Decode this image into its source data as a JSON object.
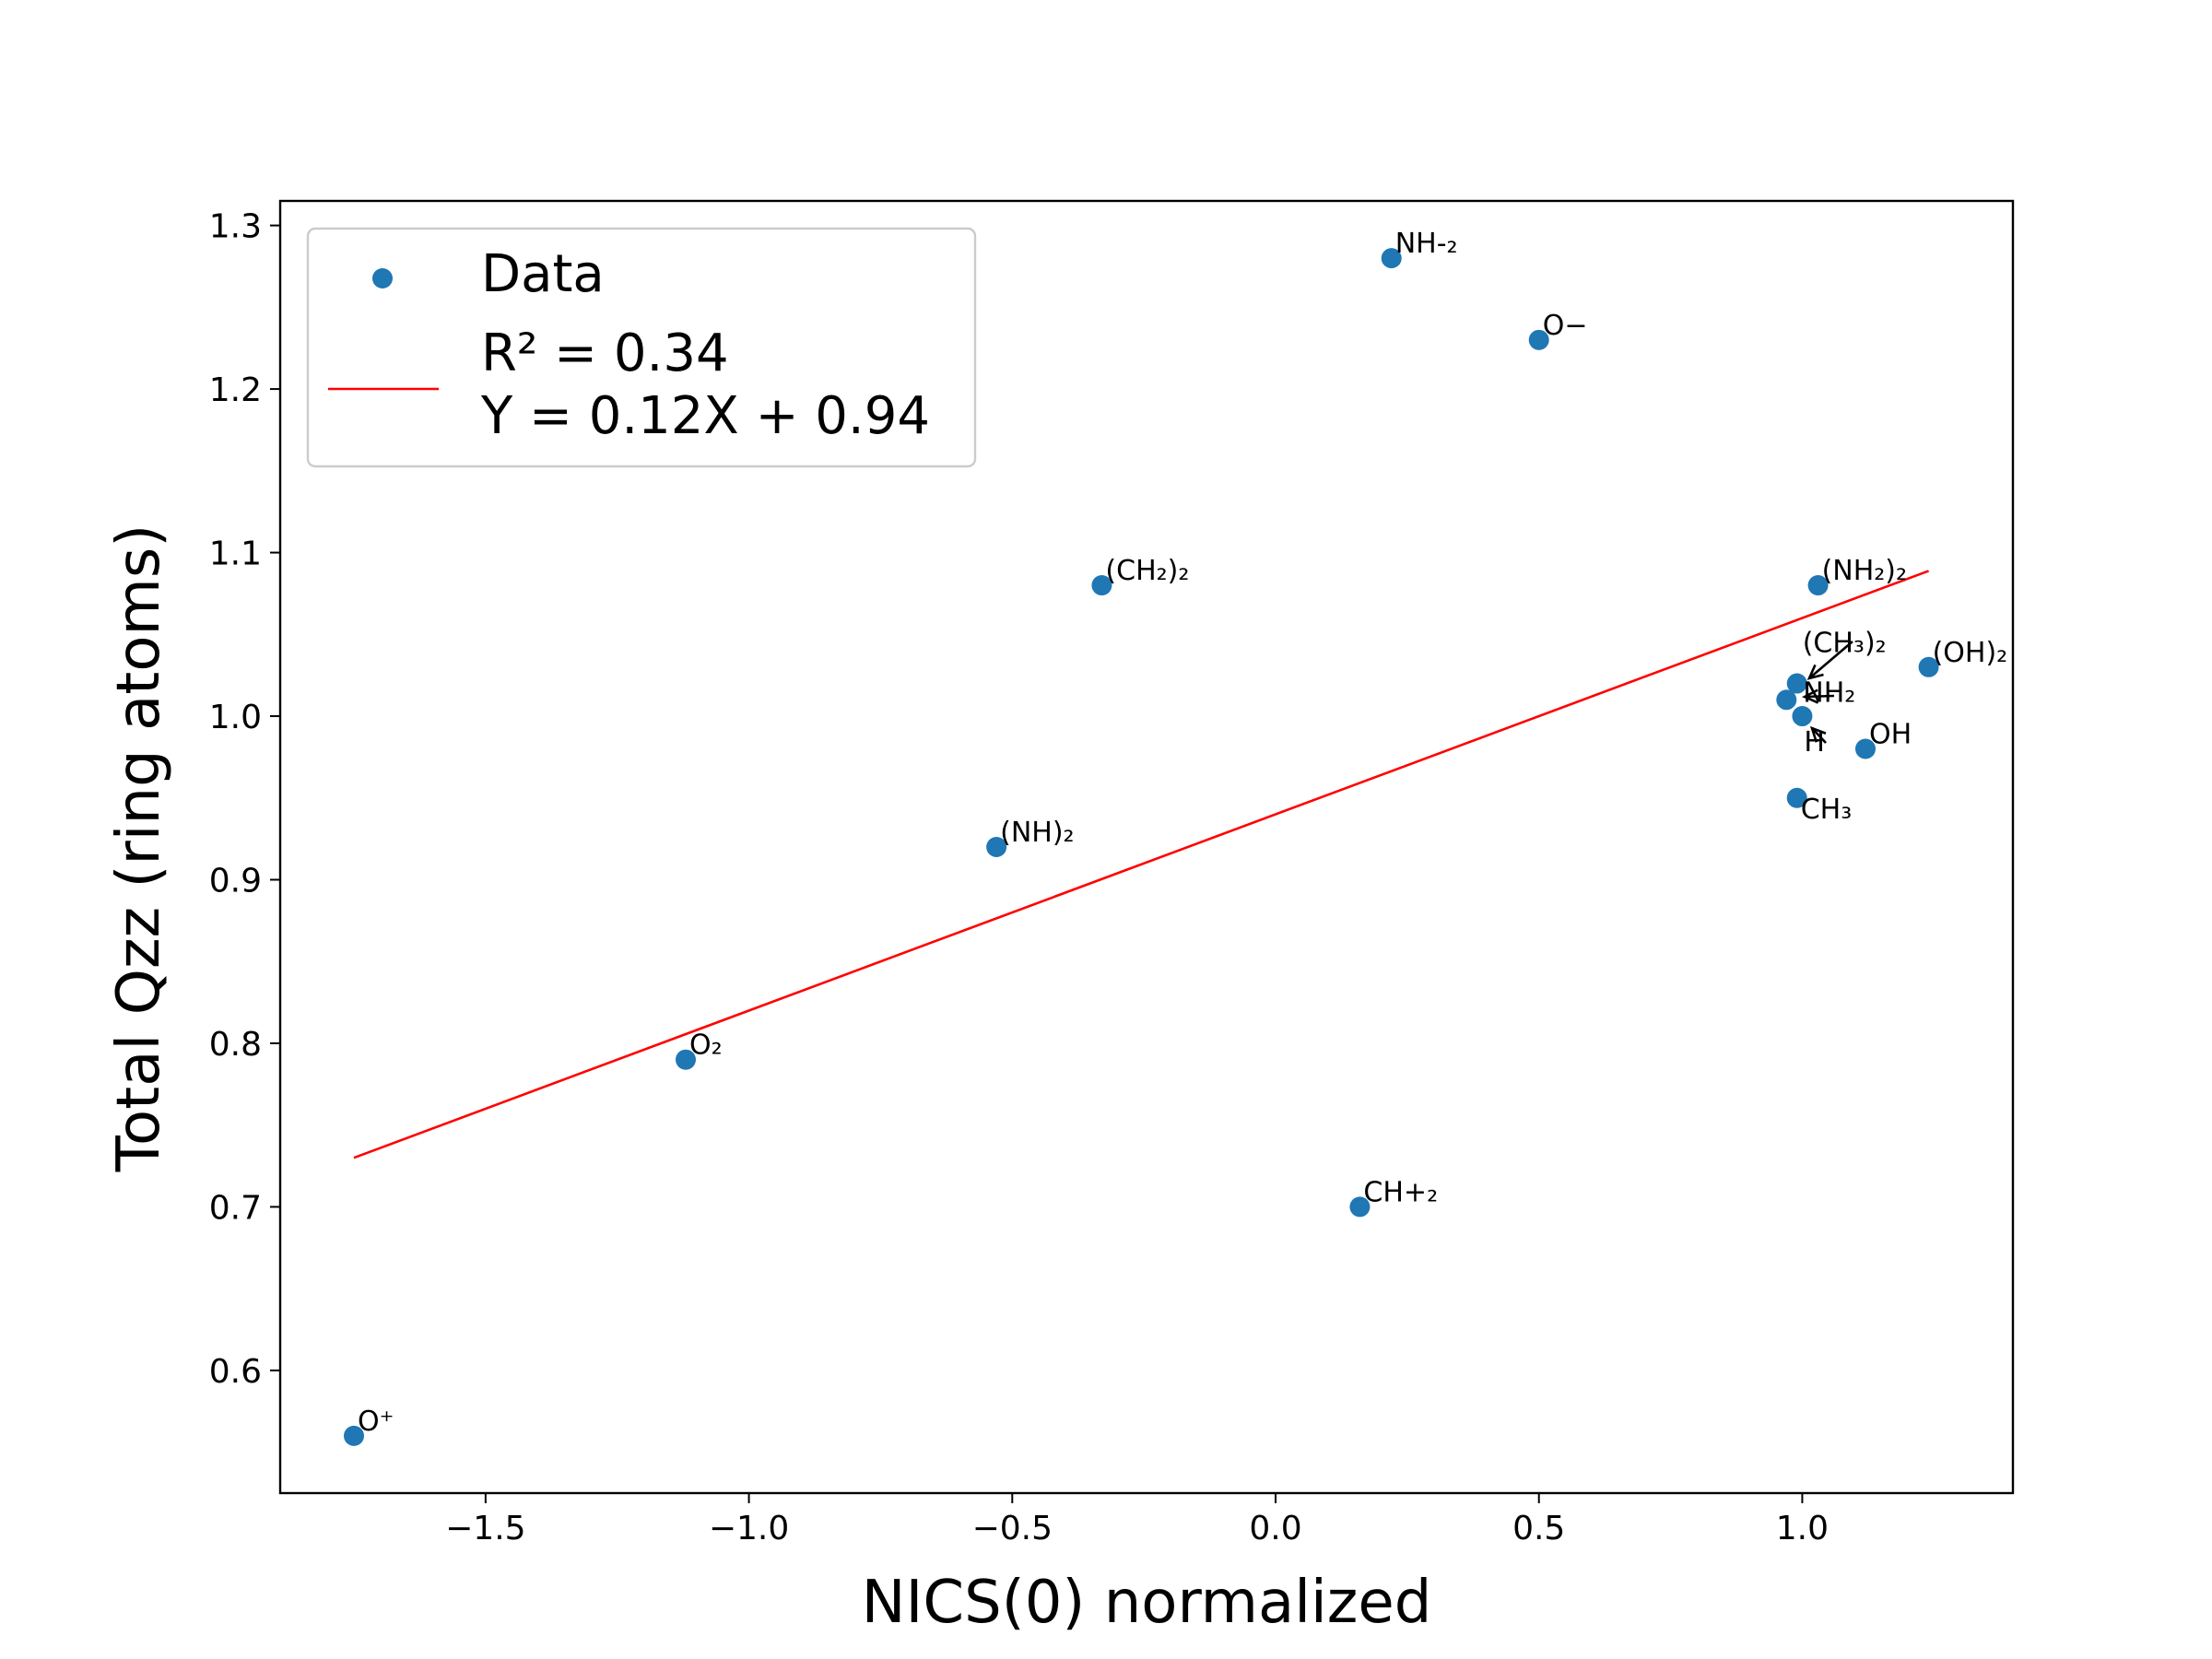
{
  "chart_data": {
    "type": "scatter",
    "xlabel": "NICS(0) normalized",
    "ylabel": "Total Qzz (ring atoms)",
    "xlim": [
      -1.89,
      1.4
    ],
    "ylim": [
      0.525,
      1.315
    ],
    "xticks": [
      {
        "value": -1.5,
        "label": "−1.5"
      },
      {
        "value": -1.0,
        "label": "−1.0"
      },
      {
        "value": -0.5,
        "label": "−0.5"
      },
      {
        "value": 0.0,
        "label": "0.0"
      },
      {
        "value": 0.5,
        "label": "0.5"
      },
      {
        "value": 1.0,
        "label": "1.0"
      }
    ],
    "yticks": [
      {
        "value": 0.6,
        "label": "0.6"
      },
      {
        "value": 0.7,
        "label": "0.7"
      },
      {
        "value": 0.8,
        "label": "0.8"
      },
      {
        "value": 0.9,
        "label": "0.9"
      },
      {
        "value": 1.0,
        "label": "1.0"
      },
      {
        "value": 1.1,
        "label": "1.1"
      },
      {
        "value": 1.2,
        "label": "1.2"
      },
      {
        "value": 1.3,
        "label": "1.3"
      }
    ],
    "grid": false,
    "legend_position": "top-left",
    "series": [
      {
        "name": "Data",
        "color": "#1f77b4",
        "points": [
          {
            "x": 0.22,
            "y": 1.28,
            "label": "NH-₂"
          },
          {
            "x": 0.5,
            "y": 1.23,
            "label": "O−"
          },
          {
            "x": -0.33,
            "y": 1.08,
            "label": "(CH₂)₂"
          },
          {
            "x": 1.03,
            "y": 1.08,
            "label": "(NH₂)₂"
          },
          {
            "x": 1.24,
            "y": 1.03,
            "label": "(OH)₂"
          },
          {
            "x": 0.99,
            "y": 1.02,
            "label": "(CH₃)₂"
          },
          {
            "x": 0.97,
            "y": 1.01,
            "label": "NH₂"
          },
          {
            "x": 1.0,
            "y": 1.0,
            "label": "H"
          },
          {
            "x": 1.12,
            "y": 0.98,
            "label": "OH"
          },
          {
            "x": 0.99,
            "y": 0.95,
            "label": "CH₃"
          },
          {
            "x": -0.53,
            "y": 0.92,
            "label": "(NH)₂"
          },
          {
            "x": -1.12,
            "y": 0.79,
            "label": "O₂"
          },
          {
            "x": 0.16,
            "y": 0.7,
            "label": "CH+₂"
          },
          {
            "x": -1.75,
            "y": 0.56,
            "label": "O⁺"
          }
        ]
      }
    ],
    "fit_line": {
      "color": "#ff0000",
      "x_range": [
        -1.75,
        1.24
      ],
      "slope": 0.12,
      "intercept": 0.94,
      "legend_lines": [
        "R² = 0.34",
        "Y = 0.12X + 0.94"
      ]
    }
  }
}
